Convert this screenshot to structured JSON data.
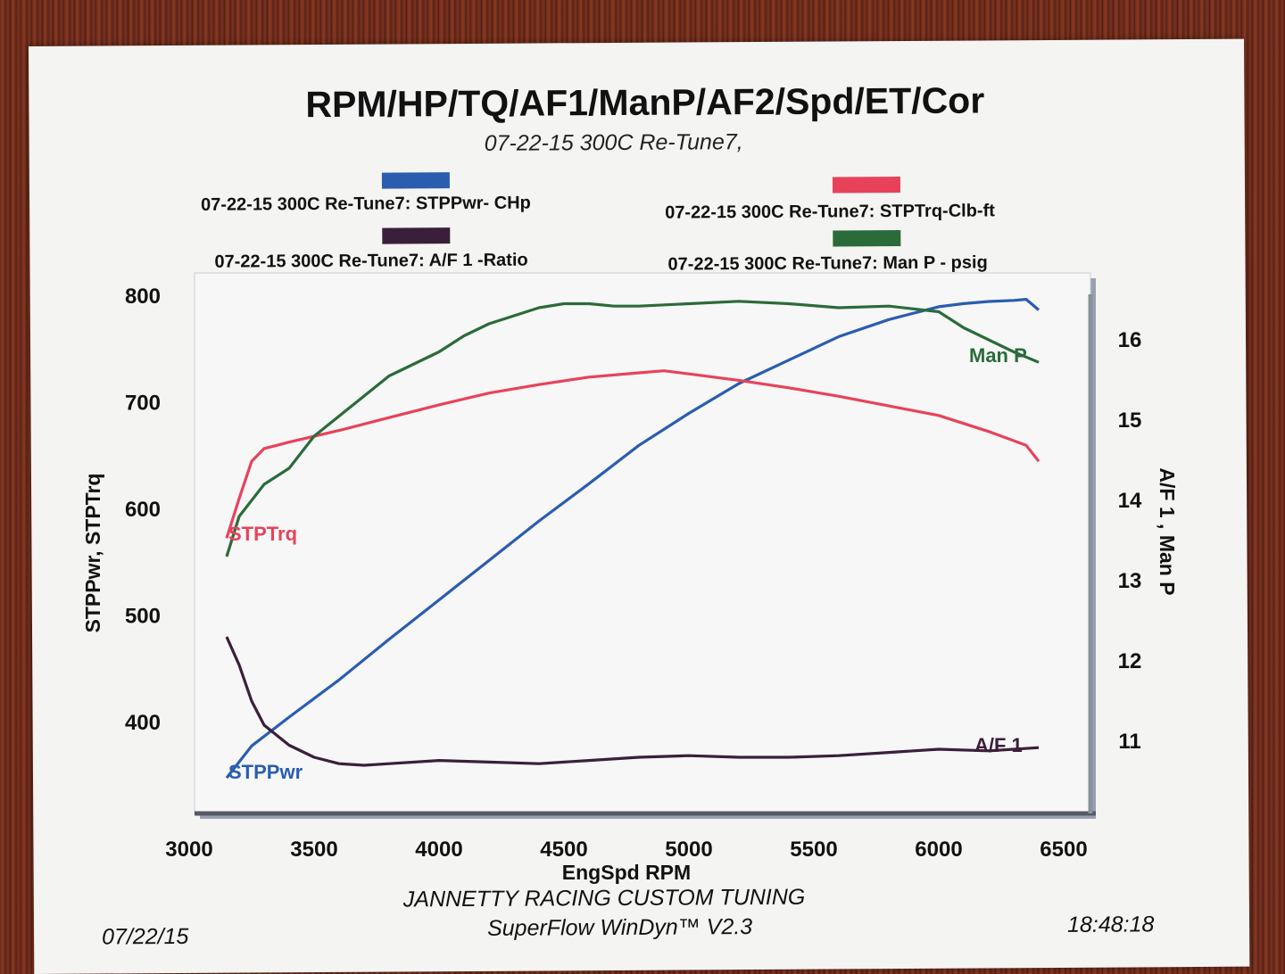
{
  "chart_data": {
    "type": "line",
    "title": "RPM/HP/TQ/AF1/ManP/AF2/Spd/ET/Cor",
    "subtitle": "07-22-15 300C Re-Tune7,",
    "xlabel": "EngSpd  RPM",
    "ylabel_left": "STPPwr, STPTrq",
    "ylabel_right": "A/F 1 , Man P",
    "xlim": [
      3000,
      6500
    ],
    "ylim_left": [
      340,
      810
    ],
    "ylim_right": [
      10.4,
      16.6
    ],
    "x_ticks": [
      "3000",
      "3500",
      "4000",
      "4500",
      "5000",
      "5500",
      "6000",
      "6500"
    ],
    "y_ticks_left": [
      "800",
      "700",
      "600",
      "500",
      "400"
    ],
    "y_ticks_right": [
      "16",
      "15",
      "14",
      "13",
      "12",
      "11"
    ],
    "legend": [
      {
        "label": "07-22-15 300C Re-Tune7: STPPwr- CHp",
        "color": "#2a5db0"
      },
      {
        "label": "07-22-15 300C Re-Tune7: STPTrq-Clb-ft",
        "color": "#e8425a"
      },
      {
        "label": "07-22-15 300C Re-Tune7: A/F 1 -Ratio",
        "color": "#3a1f3a"
      },
      {
        "label": "07-22-15 300C Re-Tune7: Man P - psig",
        "color": "#2b6b3a"
      }
    ],
    "series": [
      {
        "name": "STPPwr",
        "axis": "left",
        "color": "#2a5db0",
        "x": [
          3150,
          3250,
          3400,
          3600,
          3800,
          4000,
          4200,
          4400,
          4600,
          4800,
          5000,
          5200,
          5400,
          5600,
          5800,
          6000,
          6100,
          6200,
          6300,
          6350,
          6400
        ],
        "y": [
          348,
          378,
          405,
          440,
          478,
          515,
          552,
          589,
          624,
          660,
          690,
          718,
          740,
          762,
          778,
          790,
          793,
          795,
          796,
          797,
          787
        ]
      },
      {
        "name": "STPTrq",
        "axis": "left",
        "color": "#e8425a",
        "x": [
          3150,
          3200,
          3250,
          3300,
          3400,
          3600,
          3800,
          4000,
          4200,
          4400,
          4600,
          4800,
          4900,
          5000,
          5200,
          5400,
          5600,
          5800,
          6000,
          6200,
          6350,
          6400
        ],
        "y": [
          573,
          610,
          645,
          657,
          663,
          674,
          686,
          698,
          709,
          717,
          724,
          728,
          730,
          727,
          721,
          714,
          706,
          697,
          688,
          673,
          660,
          645
        ]
      },
      {
        "name": "A/F 1",
        "axis": "right",
        "color": "#3a1f3a",
        "x": [
          3150,
          3200,
          3250,
          3300,
          3400,
          3500,
          3600,
          3700,
          3800,
          4000,
          4200,
          4400,
          4600,
          4800,
          5000,
          5200,
          5400,
          5600,
          5800,
          6000,
          6200,
          6400
        ],
        "y": [
          12.3,
          11.95,
          11.5,
          11.2,
          10.95,
          10.8,
          10.72,
          10.7,
          10.72,
          10.76,
          10.74,
          10.72,
          10.76,
          10.8,
          10.82,
          10.8,
          10.8,
          10.82,
          10.86,
          10.9,
          10.88,
          10.92
        ]
      },
      {
        "name": "Man P",
        "axis": "right",
        "color": "#2b6b3a",
        "x": [
          3150,
          3200,
          3300,
          3400,
          3500,
          3600,
          3700,
          3800,
          3900,
          4000,
          4100,
          4200,
          4300,
          4400,
          4500,
          4600,
          4700,
          4800,
          5000,
          5200,
          5400,
          5600,
          5800,
          6000,
          6100,
          6200,
          6300,
          6400
        ],
        "y": [
          13.3,
          13.8,
          14.2,
          14.4,
          14.8,
          15.05,
          15.3,
          15.55,
          15.7,
          15.85,
          16.05,
          16.2,
          16.3,
          16.4,
          16.45,
          16.45,
          16.42,
          16.42,
          16.45,
          16.48,
          16.45,
          16.4,
          16.42,
          16.35,
          16.15,
          16.0,
          15.85,
          15.72
        ]
      }
    ],
    "annotations": [
      "STPTrq",
      "STPPwr",
      "Man P",
      "A/F 1"
    ],
    "grid": false,
    "legend_position": "top"
  },
  "footer": {
    "date": "07/22/15",
    "company": "JANNETTY RACING CUSTOM TUNING",
    "software": "SuperFlow WinDyn™  V2.3",
    "time": "18:48:18"
  }
}
